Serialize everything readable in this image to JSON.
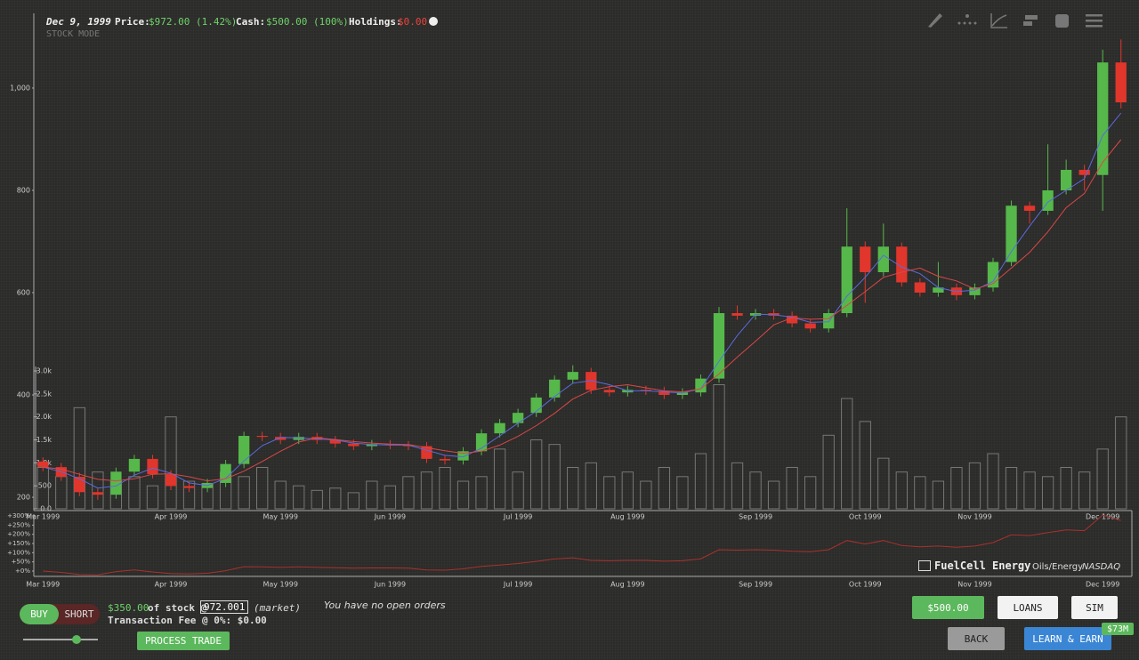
{
  "header": {
    "date": "Dec 9, 1999",
    "price_label": "Price:",
    "price": "$972.00 (1.42%)",
    "cash_label": "Cash:",
    "cash": "$500.00 (100%)",
    "holdings_label": "Holdings:",
    "holdings": "$0.00",
    "mode": "STOCK MODE"
  },
  "chart_data": [
    {
      "type": "candlestick",
      "categories": [
        "Mar 1999",
        null,
        null,
        null,
        null,
        null,
        null,
        "Apr 1999",
        null,
        null,
        null,
        null,
        null,
        "May 1999",
        null,
        null,
        null,
        null,
        null,
        "Jun 1999",
        null,
        null,
        null,
        null,
        null,
        null,
        "Jul 1999",
        null,
        null,
        null,
        null,
        null,
        "Aug 1999",
        null,
        null,
        null,
        null,
        null,
        null,
        "Sep 1999",
        null,
        null,
        null,
        null,
        null,
        "Oct 1999",
        null,
        null,
        null,
        null,
        null,
        "Nov 1999",
        null,
        null,
        null,
        null,
        null,
        null,
        "Dec 1999",
        null
      ],
      "open": [
        270,
        259,
        240,
        210,
        205,
        250,
        275,
        245,
        222,
        218,
        228,
        265,
        320,
        318,
        312,
        318,
        312,
        305,
        300,
        304,
        302,
        300,
        275,
        272,
        290,
        325,
        345,
        365,
        395,
        430,
        445,
        410,
        405,
        410,
        408,
        400,
        405,
        432,
        560,
        555,
        560,
        555,
        540,
        530,
        560,
        690,
        640,
        690,
        620,
        600,
        610,
        595,
        610,
        660,
        770,
        760,
        800,
        840,
        830,
        1050
      ],
      "high": [
        278,
        267,
        248,
        218,
        258,
        283,
        283,
        253,
        230,
        236,
        273,
        328,
        328,
        326,
        326,
        326,
        320,
        313,
        312,
        312,
        310,
        308,
        283,
        298,
        333,
        353,
        373,
        403,
        438,
        458,
        453,
        418,
        418,
        418,
        416,
        413,
        440,
        572,
        575,
        568,
        568,
        563,
        548,
        568,
        765,
        700,
        735,
        698,
        628,
        660,
        618,
        618,
        668,
        780,
        778,
        890,
        860,
        850,
        1075,
        1095
      ],
      "low": [
        251,
        232,
        202,
        195,
        197,
        242,
        237,
        214,
        210,
        210,
        220,
        257,
        310,
        304,
        304,
        304,
        297,
        292,
        292,
        294,
        292,
        267,
        264,
        264,
        282,
        317,
        337,
        357,
        387,
        422,
        402,
        397,
        397,
        400,
        392,
        392,
        397,
        424,
        547,
        547,
        547,
        532,
        522,
        522,
        552,
        580,
        632,
        612,
        592,
        592,
        585,
        587,
        602,
        652,
        735,
        752,
        792,
        800,
        760,
        960
      ],
      "close": [
        259,
        240,
        210,
        205,
        250,
        275,
        245,
        222,
        218,
        228,
        265,
        320,
        318,
        312,
        318,
        312,
        305,
        300,
        304,
        302,
        300,
        275,
        272,
        290,
        325,
        345,
        365,
        395,
        430,
        445,
        410,
        405,
        410,
        408,
        400,
        405,
        432,
        560,
        555,
        560,
        555,
        540,
        530,
        560,
        690,
        640,
        690,
        620,
        600,
        610,
        595,
        610,
        660,
        770,
        760,
        800,
        840,
        830,
        1050,
        972
      ],
      "up_color": "#56b84a",
      "down_color": "#e0362c",
      "series": [
        {
          "color": "#5a6be0",
          "values": [
            259,
            250,
            236,
            218,
            222,
            243,
            257,
            247,
            228,
            223,
            237,
            271,
            301,
            317,
            316,
            314,
            312,
            306,
            303,
            302,
            302,
            292,
            282,
            279,
            296,
            320,
            345,
            368,
            397,
            423,
            428,
            420,
            408,
            408,
            406,
            404,
            412,
            466,
            516,
            558,
            557,
            552,
            542,
            543,
            593,
            630,
            673,
            650,
            637,
            610,
            602,
            605,
            622,
            680,
            730,
            777,
            800,
            823,
            907,
            951
          ]
        },
        {
          "color": "#d84848",
          "values": [
            259,
            255,
            245,
            235,
            232,
            236,
            245,
            246,
            240,
            232,
            236,
            251,
            270,
            290,
            308,
            316,
            313,
            309,
            306,
            304,
            303,
            297,
            291,
            286,
            290,
            302,
            319,
            340,
            364,
            392,
            409,
            416,
            420,
            414,
            408,
            406,
            412,
            441,
            474,
            505,
            537,
            551,
            548,
            549,
            575,
            602,
            630,
            640,
            648,
            632,
            623,
            607,
            618,
            648,
            679,
            719,
            766,
            794,
            855,
            899
          ]
        }
      ],
      "ylim": [
        174,
        1106
      ],
      "yticks": [
        200,
        400,
        600,
        800,
        {
          "value": 1000,
          "label": "1,000"
        }
      ]
    },
    {
      "type": "bar",
      "color": "#8a8a88",
      "values": [
        900,
        700,
        2200,
        800,
        600,
        700,
        500,
        2000,
        600,
        550,
        800,
        700,
        900,
        600,
        500,
        400,
        450,
        350,
        600,
        500,
        700,
        800,
        900,
        600,
        700,
        1300,
        800,
        1500,
        1400,
        900,
        1000,
        700,
        800,
        600,
        900,
        700,
        1200,
        2700,
        1000,
        800,
        600,
        900,
        700,
        1600,
        2400,
        1900,
        1100,
        800,
        700,
        600,
        900,
        1000,
        1200,
        900,
        800,
        700,
        900,
        800,
        1300,
        2000
      ],
      "ylim": [
        0,
        3000
      ],
      "yticks": [
        {
          "value": 0,
          "label": "0.0"
        },
        500,
        {
          "value": 1000,
          "label": "1.0k"
        },
        {
          "value": 1500,
          "label": "1.5k"
        },
        {
          "value": 2000,
          "label": "2.0k"
        },
        {
          "value": 2500,
          "label": "2.5k"
        },
        {
          "value": 3000,
          "label": "3.0k"
        }
      ]
    },
    {
      "type": "line",
      "color": "#a8322c",
      "values": [
        0,
        -7,
        -19,
        -21,
        -3,
        6,
        -5,
        -14,
        -16,
        -12,
        2,
        24,
        23,
        20,
        23,
        20,
        18,
        16,
        17,
        17,
        16,
        6,
        5,
        12,
        25,
        33,
        41,
        53,
        66,
        72,
        58,
        56,
        58,
        58,
        54,
        56,
        67,
        116,
        114,
        116,
        114,
        108,
        105,
        116,
        166,
        147,
        166,
        139,
        132,
        136,
        130,
        136,
        155,
        197,
        193,
        209,
        224,
        220,
        305,
        275
      ],
      "ylim": [
        -29,
        305
      ],
      "yticks": [
        {
          "value": 300,
          "label": "+300%"
        },
        {
          "value": 250,
          "label": "+250%"
        },
        {
          "value": 200,
          "label": "+200%"
        },
        {
          "value": 150,
          "label": "+150%"
        },
        {
          "value": 100,
          "label": "+100%"
        },
        {
          "value": 50,
          "label": "+50%"
        },
        {
          "value": 0,
          "label": "+0%"
        }
      ]
    }
  ],
  "company": {
    "name": "FuelCell Energy",
    "sector": "Oils/Energy",
    "exchange": "NASDAQ"
  },
  "trade": {
    "buy": "BUY",
    "short": "SHORT",
    "amount": "$350.00",
    "of_stock": "of stock @",
    "limit": "972.001",
    "order_type": "(market)",
    "fee": "Transaction Fee @ 0%: $0.00",
    "process": "PROCESS TRADE"
  },
  "orders": "You have no open orders",
  "buttons": {
    "cash": "$500.00",
    "loans": "LOANS",
    "sim": "SIM",
    "back": "BACK",
    "learn": "LEARN & EARN",
    "badge": "$73M"
  }
}
